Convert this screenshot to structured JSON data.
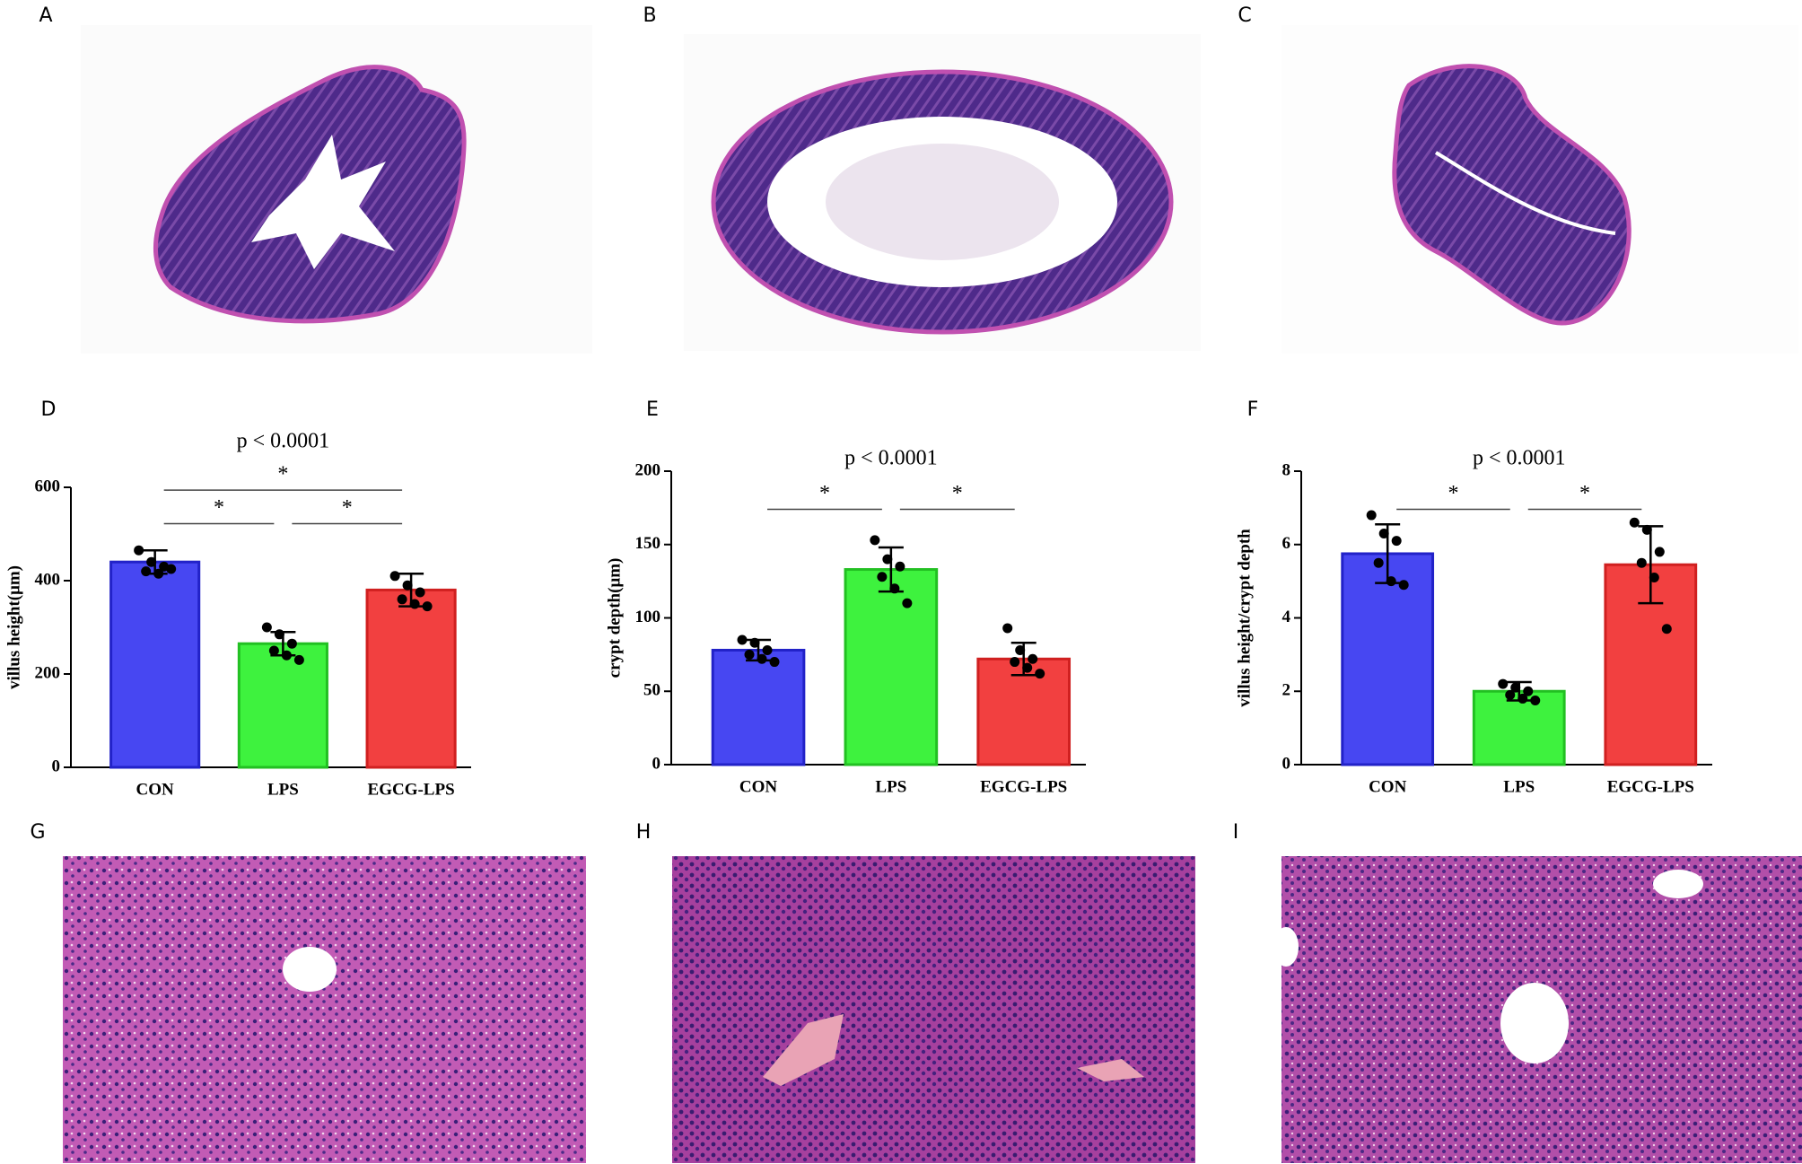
{
  "panel_labels": [
    "A",
    "B",
    "C",
    "D",
    "E",
    "F",
    "G",
    "H",
    "I"
  ],
  "chart_data": [
    {
      "type": "bar",
      "ylabel": "villus height(μm)",
      "annotation": "p < 0.0001",
      "categories": [
        "CON",
        "LPS",
        "EGCG-LPS"
      ],
      "colors": [
        "#4747f2",
        "#3ef23e",
        "#f24040"
      ],
      "edge_colors": [
        "#2222c8",
        "#22c022",
        "#d02020"
      ],
      "values": [
        440,
        265,
        380
      ],
      "errors": [
        25,
        25,
        35
      ],
      "points": [
        [
          465,
          440,
          430,
          420,
          415,
          425
        ],
        [
          300,
          285,
          265,
          250,
          240,
          230
        ],
        [
          410,
          390,
          375,
          360,
          350,
          345
        ]
      ],
      "significance": [
        {
          "groups": [
            "CON",
            "LPS"
          ],
          "label": "*"
        },
        {
          "groups": [
            "LPS",
            "EGCG-LPS"
          ],
          "label": "*"
        },
        {
          "groups": [
            "CON",
            "EGCG-LPS"
          ],
          "label": "*"
        }
      ],
      "ylim": [
        0,
        600
      ],
      "yticks": [
        0,
        200,
        400,
        600
      ]
    },
    {
      "type": "bar",
      "ylabel": "crypt depth(μm)",
      "annotation": "p < 0.0001",
      "categories": [
        "CON",
        "LPS",
        "EGCG-LPS"
      ],
      "colors": [
        "#4747f2",
        "#3ef23e",
        "#f24040"
      ],
      "edge_colors": [
        "#2222c8",
        "#22c022",
        "#d02020"
      ],
      "values": [
        78,
        133,
        72
      ],
      "errors": [
        7,
        15,
        11
      ],
      "points": [
        [
          85,
          83,
          78,
          75,
          72,
          70
        ],
        [
          153,
          140,
          135,
          128,
          120,
          110
        ],
        [
          93,
          78,
          72,
          70,
          66,
          62
        ]
      ],
      "significance": [
        {
          "groups": [
            "CON",
            "LPS"
          ],
          "label": "*"
        },
        {
          "groups": [
            "LPS",
            "EGCG-LPS"
          ],
          "label": "*"
        }
      ],
      "ylim": [
        0,
        200
      ],
      "yticks": [
        0,
        50,
        100,
        150,
        200
      ]
    },
    {
      "type": "bar",
      "ylabel": "villus height/crypt depth",
      "annotation": "p < 0.0001",
      "categories": [
        "CON",
        "LPS",
        "EGCG-LPS"
      ],
      "colors": [
        "#4747f2",
        "#3ef23e",
        "#f24040"
      ],
      "edge_colors": [
        "#2222c8",
        "#22c022",
        "#d02020"
      ],
      "values": [
        5.75,
        2.0,
        5.45
      ],
      "errors": [
        0.8,
        0.25,
        1.05
      ],
      "points": [
        [
          6.8,
          6.3,
          6.1,
          5.5,
          5.0,
          4.9
        ],
        [
          2.2,
          2.1,
          2.0,
          1.9,
          1.8,
          1.75
        ],
        [
          6.6,
          6.4,
          5.8,
          5.5,
          5.1,
          3.7
        ]
      ],
      "significance": [
        {
          "groups": [
            "CON",
            "LPS"
          ],
          "label": "*"
        },
        {
          "groups": [
            "LPS",
            "EGCG-LPS"
          ],
          "label": "*"
        }
      ],
      "ylim": [
        0,
        8
      ],
      "yticks": [
        0,
        2,
        4,
        6,
        8
      ]
    }
  ]
}
